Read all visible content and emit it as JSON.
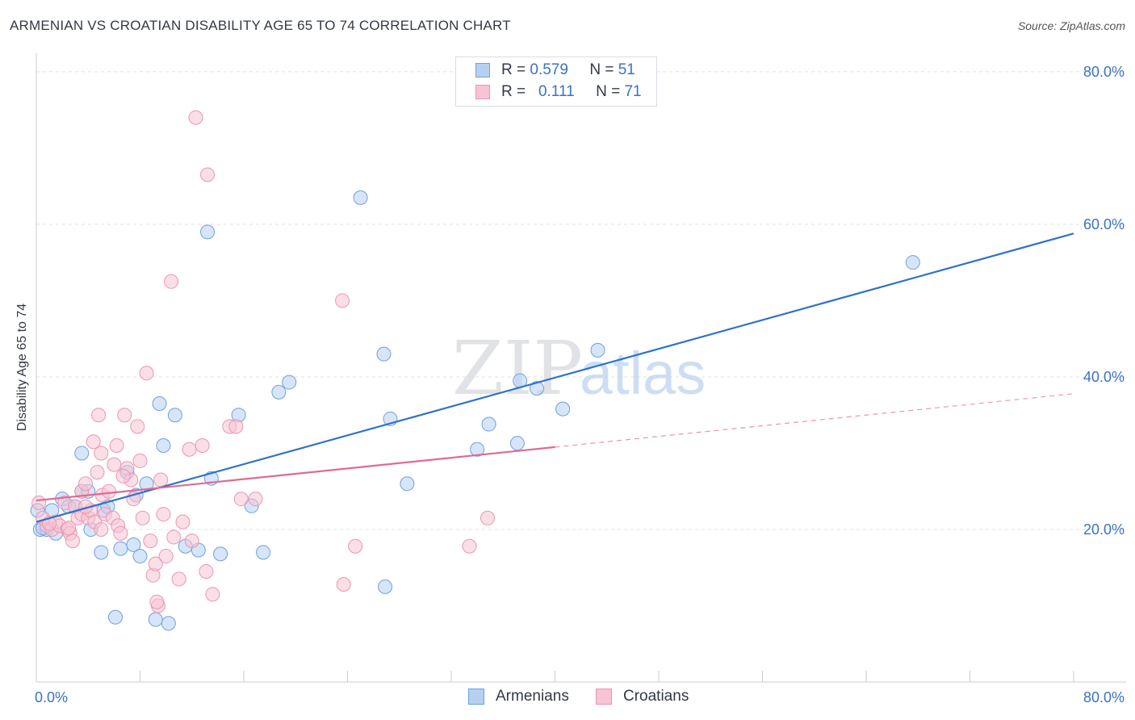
{
  "title": "ARMENIAN VS CROATIAN DISABILITY AGE 65 TO 74 CORRELATION CHART",
  "source": "Source: ZipAtlas.com",
  "watermark": {
    "zip": "ZIP",
    "atlas": "atlas"
  },
  "chart_data": {
    "type": "scatter",
    "xlabel": "",
    "ylabel": "Disability Age 65 to 74",
    "xlim": [
      0,
      80
    ],
    "ylim": [
      0,
      82
    ],
    "x_tick_labels": [
      {
        "value": 0,
        "label": "0.0%"
      },
      {
        "value": 80,
        "label": "80.0%"
      }
    ],
    "y_tick_labels": [
      {
        "value": 20,
        "label": "20.0%"
      },
      {
        "value": 40,
        "label": "40.0%"
      },
      {
        "value": 60,
        "label": "60.0%"
      },
      {
        "value": 80,
        "label": "80.0%"
      }
    ],
    "legend": {
      "entries": [
        {
          "r_label": "R =",
          "r_value": "0.579",
          "n_label": "N =",
          "n_value": "51"
        },
        {
          "r_label": "R =",
          "r_value": "0.111",
          "n_label": "N =",
          "n_value": "71"
        }
      ]
    },
    "series": [
      {
        "name": "Armenians",
        "color": "#6fa0e0",
        "fill": "#b7d0f2",
        "line_color": "#2f72cc",
        "trend": {
          "x0": 0,
          "y0": 21.0,
          "x1": 80,
          "y1": 58.8,
          "dashed_from": null
        },
        "points": [
          [
            0.1,
            22.5
          ],
          [
            0.3,
            20.0
          ],
          [
            0.8,
            20.0
          ],
          [
            1.2,
            22.5
          ],
          [
            1.5,
            19.5
          ],
          [
            2.0,
            24.0
          ],
          [
            2.5,
            23.0
          ],
          [
            3.0,
            23.0
          ],
          [
            3.5,
            25.0
          ],
          [
            3.5,
            30.0
          ],
          [
            4.0,
            25.0
          ],
          [
            4.2,
            20.0
          ],
          [
            5.0,
            17.0
          ],
          [
            5.2,
            22.5
          ],
          [
            5.5,
            23.0
          ],
          [
            6.1,
            8.5
          ],
          [
            6.5,
            17.5
          ],
          [
            7.0,
            27.5
          ],
          [
            7.5,
            18.0
          ],
          [
            7.7,
            24.5
          ],
          [
            8.0,
            16.5
          ],
          [
            8.5,
            26.0
          ],
          [
            9.5,
            36.5
          ],
          [
            9.8,
            31.0
          ],
          [
            9.2,
            8.2
          ],
          [
            10.2,
            7.7
          ],
          [
            10.7,
            35.0
          ],
          [
            11.5,
            17.8
          ],
          [
            12.5,
            17.3
          ],
          [
            13.2,
            59.0
          ],
          [
            13.5,
            26.7
          ],
          [
            14.2,
            16.8
          ],
          [
            15.6,
            35.0
          ],
          [
            16.6,
            23.1
          ],
          [
            17.5,
            17.0
          ],
          [
            18.7,
            38.0
          ],
          [
            19.5,
            39.3
          ],
          [
            25.0,
            63.5
          ],
          [
            26.8,
            43.0
          ],
          [
            26.9,
            12.5
          ],
          [
            27.3,
            34.5
          ],
          [
            28.6,
            26.0
          ],
          [
            34.0,
            30.5
          ],
          [
            34.9,
            33.8
          ],
          [
            37.1,
            31.3
          ],
          [
            37.3,
            39.5
          ],
          [
            38.6,
            38.5
          ],
          [
            40.6,
            35.8
          ],
          [
            43.3,
            43.5
          ],
          [
            67.6,
            55.0
          ],
          [
            0.5,
            20.2
          ]
        ]
      },
      {
        "name": "Croatians",
        "color": "#ee94b1",
        "fill": "#f6c4d4",
        "line_color": "#e06a93",
        "trend": {
          "x0": 0,
          "y0": 23.8,
          "x1": 80,
          "y1": 37.8,
          "dashed_from": 40
        },
        "points": [
          [
            0.2,
            23.5
          ],
          [
            0.5,
            21.5
          ],
          [
            0.8,
            20.5
          ],
          [
            1.2,
            20.0
          ],
          [
            1.5,
            21.0
          ],
          [
            1.8,
            20.5
          ],
          [
            2.2,
            23.5
          ],
          [
            2.4,
            20.0
          ],
          [
            2.6,
            19.5
          ],
          [
            2.8,
            18.5
          ],
          [
            3.0,
            23.0
          ],
          [
            3.2,
            21.5
          ],
          [
            3.5,
            22.0
          ],
          [
            3.5,
            25.0
          ],
          [
            3.8,
            26.0
          ],
          [
            4.0,
            21.5
          ],
          [
            4.2,
            22.5
          ],
          [
            4.4,
            31.5
          ],
          [
            4.5,
            21.0
          ],
          [
            4.7,
            27.5
          ],
          [
            4.8,
            35.0
          ],
          [
            5.0,
            30.0
          ],
          [
            5.1,
            24.5
          ],
          [
            5.3,
            22.0
          ],
          [
            5.6,
            25.0
          ],
          [
            5.9,
            21.5
          ],
          [
            6.0,
            28.5
          ],
          [
            6.2,
            31.0
          ],
          [
            6.3,
            20.5
          ],
          [
            6.5,
            19.5
          ],
          [
            6.8,
            35.0
          ],
          [
            7.0,
            28.0
          ],
          [
            7.3,
            26.5
          ],
          [
            7.8,
            33.5
          ],
          [
            8.0,
            29.0
          ],
          [
            8.2,
            21.5
          ],
          [
            8.5,
            40.5
          ],
          [
            8.8,
            18.5
          ],
          [
            9.0,
            14.0
          ],
          [
            9.2,
            15.5
          ],
          [
            9.4,
            10.0
          ],
          [
            9.6,
            26.5
          ],
          [
            9.8,
            22.0
          ],
          [
            10.0,
            16.5
          ],
          [
            10.4,
            52.5
          ],
          [
            10.6,
            19.0
          ],
          [
            11.0,
            13.5
          ],
          [
            11.3,
            21.0
          ],
          [
            11.8,
            30.5
          ],
          [
            12.0,
            18.5
          ],
          [
            12.3,
            74.0
          ],
          [
            12.8,
            31.0
          ],
          [
            13.1,
            14.5
          ],
          [
            13.2,
            66.5
          ],
          [
            13.6,
            11.5
          ],
          [
            14.9,
            33.5
          ],
          [
            15.4,
            33.5
          ],
          [
            15.8,
            24.0
          ],
          [
            16.9,
            24.0
          ],
          [
            23.6,
            50.0
          ],
          [
            23.7,
            12.8
          ],
          [
            24.6,
            17.8
          ],
          [
            33.4,
            17.8
          ],
          [
            34.8,
            21.5
          ],
          [
            9.3,
            10.5
          ],
          [
            2.5,
            20.2
          ],
          [
            3.8,
            23.0
          ],
          [
            1.0,
            20.8
          ],
          [
            6.7,
            27.0
          ],
          [
            7.5,
            24.0
          ],
          [
            5.0,
            20.0
          ]
        ]
      }
    ]
  }
}
